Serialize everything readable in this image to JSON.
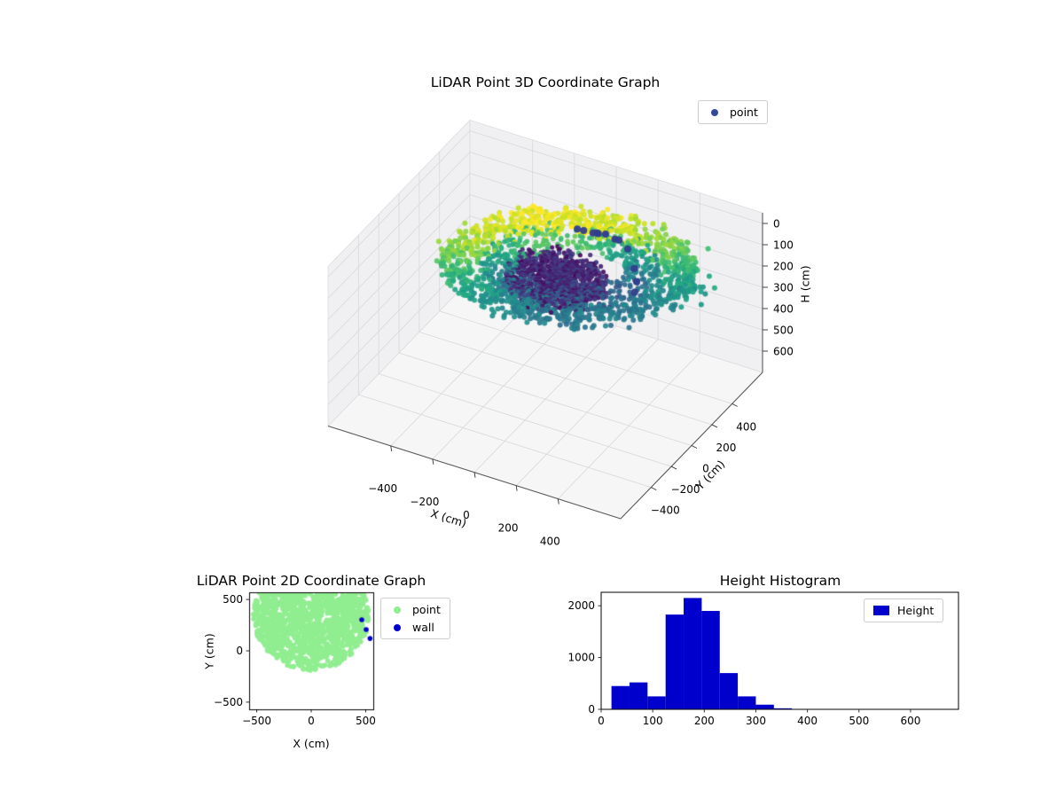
{
  "figure": {
    "background": "#ffffff"
  },
  "chart_data": [
    {
      "id": "lidar-3d",
      "type": "scatter3d",
      "title": "LiDAR Point 3D Coordinate Graph",
      "xlabel": "X (cm)",
      "ylabel": "Y (cm)",
      "zlabel": "H (cm)",
      "xticks": [
        -400,
        -200,
        0,
        200,
        400
      ],
      "yticks": [
        -400,
        -200,
        0,
        200,
        400
      ],
      "zticks": [
        0,
        100,
        200,
        300,
        400,
        500,
        600
      ],
      "xlim": [
        -700,
        700
      ],
      "ylim": [
        -700,
        700
      ],
      "zlim": [
        -50,
        700
      ],
      "z_axis_inverted": true,
      "colormap": "viridis",
      "legend": [
        {
          "label": "point",
          "color": "#35479b"
        }
      ],
      "cloud": {
        "description": "Ring/dome LiDAR scan: dense dark (low colormap) core near center, viridis-colored rim ring radius ~380-560 cm, heights ~0-370 cm; yellow-green on back/top rim, teal-blue on front rim, scattered navy outlier points above",
        "center": [
          90,
          60
        ],
        "core_center": [
          30,
          40
        ],
        "rim": {
          "n": 1150,
          "r_min": 380,
          "r_max": 560,
          "h_back": 145,
          "h_front": 15
        },
        "mid": {
          "n": 520,
          "r_min": 230,
          "r_max": 390
        },
        "core": {
          "n": 1050,
          "r_max": 220,
          "h_min": 110,
          "h_max": 190
        },
        "outliers": {
          "color": "#323d8d",
          "points": [
            [
              -20,
              420,
              120
            ],
            [
              30,
              450,
              130
            ],
            [
              80,
              430,
              110
            ],
            [
              110,
              460,
              140
            ],
            [
              60,
              400,
              100
            ],
            [
              0,
              470,
              150
            ],
            [
              140,
              440,
              125
            ],
            [
              -60,
              440,
              135
            ],
            [
              300,
              260,
              120
            ],
            [
              340,
              200,
              140
            ],
            [
              355,
              150,
              160
            ],
            [
              210,
              380,
              115
            ]
          ]
        }
      }
    },
    {
      "id": "lidar-2d",
      "type": "scatter",
      "title": "LiDAR Point 2D Coordinate Graph",
      "xlabel": "X (cm)",
      "ylabel": "Y (cm)",
      "xticks": [
        -500,
        0,
        500
      ],
      "yticks": [
        -500,
        0,
        500
      ],
      "xlim": [
        -570,
        570
      ],
      "ylim": [
        -570,
        570
      ],
      "legend": [
        {
          "label": "point",
          "color": "#90ee90"
        },
        {
          "label": "wall",
          "color": "#0000cd"
        }
      ],
      "blob": {
        "n": 1600,
        "center_x": 0,
        "center_y": 340,
        "radius": 530,
        "color": "#90ee90"
      },
      "wall_points": [
        [
          464,
          302
        ],
        [
          505,
          207
        ],
        [
          540,
          120
        ]
      ]
    },
    {
      "id": "height-hist",
      "type": "bar",
      "title": "Height Histogram",
      "legend": [
        {
          "label": "Height",
          "color": "#0000cd"
        }
      ],
      "bar_color": "#0000cd",
      "bin_start": 20,
      "bin_width": 35,
      "counts": [
        450,
        520,
        250,
        1830,
        2150,
        1900,
        700,
        250,
        90,
        20
      ],
      "xticks": [
        0,
        100,
        200,
        300,
        400,
        500,
        600
      ],
      "yticks": [
        0,
        1000,
        2000
      ],
      "xlim": [
        0,
        693
      ],
      "ylim": [
        0,
        2260
      ],
      "xlabel": "",
      "ylabel": ""
    }
  ],
  "style": {
    "viridis": [
      "#440154",
      "#482475",
      "#414487",
      "#355f8d",
      "#2a788e",
      "#21918c",
      "#22a884",
      "#44bf70",
      "#7ad151",
      "#bddf26",
      "#fde725"
    ],
    "pane": "#f0f0f2",
    "floor": "#f6f6f7",
    "grid3d": "#d8d8db",
    "pane_edge": "#dcdcdf",
    "spine3d": "#5a5a5a",
    "spine2d": "#000000",
    "tick": "#333333",
    "text": "#000000"
  }
}
